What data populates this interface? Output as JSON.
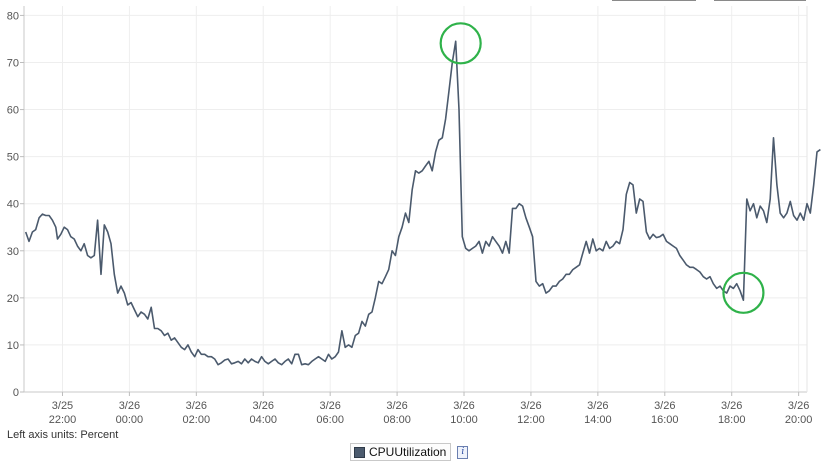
{
  "chart_data": {
    "type": "line",
    "title": "",
    "xlabel": "",
    "ylabel": "",
    "units_note": "Left axis units: Percent",
    "ylim": [
      0,
      82
    ],
    "yticks": [
      0,
      10,
      20,
      30,
      40,
      50,
      60,
      70,
      80
    ],
    "grid": true,
    "legend_position": "bottom-center",
    "x_range_hours": [
      20.85,
      44.25
    ],
    "xtick_hours": [
      22,
      24,
      26,
      28,
      30,
      32,
      34,
      36,
      38,
      40,
      42,
      44
    ],
    "xtick_labels": [
      [
        "3/25",
        "22:00"
      ],
      [
        "3/26",
        "00:00"
      ],
      [
        "3/26",
        "02:00"
      ],
      [
        "3/26",
        "04:00"
      ],
      [
        "3/26",
        "06:00"
      ],
      [
        "3/26",
        "08:00"
      ],
      [
        "3/26",
        "10:00"
      ],
      [
        "3/26",
        "12:00"
      ],
      [
        "3/26",
        "14:00"
      ],
      [
        "3/26",
        "16:00"
      ],
      [
        "3/26",
        "18:00"
      ],
      [
        "3/26",
        "20:00"
      ]
    ],
    "annotations": [
      {
        "type": "circle",
        "color": "#2fb24a",
        "x_hour": 33.9,
        "y": 74.5
      },
      {
        "type": "circle",
        "color": "#2fb24a",
        "x_hour": 42.35,
        "y": 21.5
      }
    ],
    "series": [
      {
        "name": "CPUUtilization",
        "color": "#4b5a6d",
        "points": [
          [
            20.9,
            34
          ],
          [
            21.0,
            32
          ],
          [
            21.1,
            34
          ],
          [
            21.2,
            34.5
          ],
          [
            21.3,
            37
          ],
          [
            21.4,
            37.8
          ],
          [
            21.5,
            37.5
          ],
          [
            21.6,
            37.5
          ],
          [
            21.7,
            36.5
          ],
          [
            21.8,
            35
          ],
          [
            21.85,
            32.5
          ],
          [
            21.95,
            33.5
          ],
          [
            22.05,
            35
          ],
          [
            22.15,
            34.5
          ],
          [
            22.25,
            33
          ],
          [
            22.35,
            32.5
          ],
          [
            22.45,
            31
          ],
          [
            22.55,
            30
          ],
          [
            22.65,
            31.5
          ],
          [
            22.75,
            29
          ],
          [
            22.85,
            28.5
          ],
          [
            22.95,
            29
          ],
          [
            23.05,
            36.5
          ],
          [
            23.15,
            25
          ],
          [
            23.25,
            35.5
          ],
          [
            23.35,
            34
          ],
          [
            23.45,
            31.5
          ],
          [
            23.55,
            25
          ],
          [
            23.65,
            21
          ],
          [
            23.75,
            22.5
          ],
          [
            23.85,
            21
          ],
          [
            23.95,
            18.5
          ],
          [
            24.05,
            19
          ],
          [
            24.15,
            17.5
          ],
          [
            24.25,
            16
          ],
          [
            24.35,
            17
          ],
          [
            24.45,
            16.5
          ],
          [
            24.55,
            15.5
          ],
          [
            24.65,
            18
          ],
          [
            24.75,
            13.5
          ],
          [
            24.85,
            13.5
          ],
          [
            24.95,
            13
          ],
          [
            25.05,
            12
          ],
          [
            25.15,
            12.5
          ],
          [
            25.25,
            11
          ],
          [
            25.35,
            11.5
          ],
          [
            25.45,
            10.5
          ],
          [
            25.55,
            9.5
          ],
          [
            25.65,
            9
          ],
          [
            25.75,
            10
          ],
          [
            25.85,
            8.5
          ],
          [
            25.95,
            7.5
          ],
          [
            26.05,
            9
          ],
          [
            26.15,
            8
          ],
          [
            26.25,
            8
          ],
          [
            26.35,
            7.5
          ],
          [
            26.45,
            7.5
          ],
          [
            26.55,
            7
          ],
          [
            26.65,
            5.8
          ],
          [
            26.75,
            6.2
          ],
          [
            26.85,
            6.8
          ],
          [
            26.95,
            7
          ],
          [
            27.05,
            6
          ],
          [
            27.15,
            6.2
          ],
          [
            27.25,
            6.5
          ],
          [
            27.35,
            6
          ],
          [
            27.45,
            7
          ],
          [
            27.55,
            6.2
          ],
          [
            27.65,
            7
          ],
          [
            27.75,
            6.5
          ],
          [
            27.85,
            6.2
          ],
          [
            27.95,
            7.5
          ],
          [
            28.05,
            6.5
          ],
          [
            28.15,
            6
          ],
          [
            28.25,
            6.5
          ],
          [
            28.35,
            7
          ],
          [
            28.45,
            6.2
          ],
          [
            28.55,
            5.8
          ],
          [
            28.65,
            6.5
          ],
          [
            28.75,
            7
          ],
          [
            28.85,
            6
          ],
          [
            28.95,
            8
          ],
          [
            29.05,
            8
          ],
          [
            29.15,
            5.8
          ],
          [
            29.25,
            6
          ],
          [
            29.35,
            5.8
          ],
          [
            29.45,
            6.5
          ],
          [
            29.55,
            7
          ],
          [
            29.65,
            7.5
          ],
          [
            29.75,
            7
          ],
          [
            29.85,
            6.5
          ],
          [
            29.95,
            8
          ],
          [
            30.05,
            7
          ],
          [
            30.15,
            7.5
          ],
          [
            30.25,
            8.5
          ],
          [
            30.35,
            13
          ],
          [
            30.45,
            9.5
          ],
          [
            30.55,
            10
          ],
          [
            30.65,
            9.5
          ],
          [
            30.75,
            12
          ],
          [
            30.85,
            12.5
          ],
          [
            30.95,
            15
          ],
          [
            31.05,
            14
          ],
          [
            31.15,
            16.5
          ],
          [
            31.25,
            17
          ],
          [
            31.35,
            20
          ],
          [
            31.45,
            23.5
          ],
          [
            31.55,
            23
          ],
          [
            31.65,
            24.5
          ],
          [
            31.75,
            26
          ],
          [
            31.85,
            30
          ],
          [
            31.95,
            29
          ],
          [
            32.05,
            33
          ],
          [
            32.15,
            35
          ],
          [
            32.25,
            38
          ],
          [
            32.35,
            36
          ],
          [
            32.45,
            43
          ],
          [
            32.55,
            47
          ],
          [
            32.65,
            46.5
          ],
          [
            32.75,
            47
          ],
          [
            32.85,
            48
          ],
          [
            32.95,
            49
          ],
          [
            33.05,
            47
          ],
          [
            33.15,
            51
          ],
          [
            33.25,
            53.5
          ],
          [
            33.35,
            54
          ],
          [
            33.45,
            58
          ],
          [
            33.55,
            64
          ],
          [
            33.65,
            70
          ],
          [
            33.75,
            74.5
          ],
          [
            33.85,
            60
          ],
          [
            33.95,
            33
          ],
          [
            34.05,
            30.5
          ],
          [
            34.15,
            30
          ],
          [
            34.25,
            30.5
          ],
          [
            34.35,
            31
          ],
          [
            34.45,
            32
          ],
          [
            34.55,
            29.5
          ],
          [
            34.65,
            32
          ],
          [
            34.75,
            31
          ],
          [
            34.85,
            33
          ],
          [
            34.95,
            32
          ],
          [
            35.05,
            31
          ],
          [
            35.15,
            29.5
          ],
          [
            35.25,
            32
          ],
          [
            35.35,
            29.5
          ],
          [
            35.45,
            39
          ],
          [
            35.55,
            39
          ],
          [
            35.65,
            40
          ],
          [
            35.75,
            39.5
          ],
          [
            35.85,
            37
          ],
          [
            35.95,
            35
          ],
          [
            36.05,
            33
          ],
          [
            36.15,
            23.5
          ],
          [
            36.25,
            22.5
          ],
          [
            36.35,
            23
          ],
          [
            36.45,
            21
          ],
          [
            36.55,
            21.5
          ],
          [
            36.65,
            22.5
          ],
          [
            36.75,
            22.5
          ],
          [
            36.85,
            23.5
          ],
          [
            36.95,
            24
          ],
          [
            37.05,
            25
          ],
          [
            37.15,
            25
          ],
          [
            37.25,
            26
          ],
          [
            37.35,
            26.5
          ],
          [
            37.45,
            27
          ],
          [
            37.55,
            29.5
          ],
          [
            37.65,
            32
          ],
          [
            37.75,
            29.5
          ],
          [
            37.85,
            32.5
          ],
          [
            37.95,
            30
          ],
          [
            38.05,
            30.5
          ],
          [
            38.15,
            30
          ],
          [
            38.25,
            32
          ],
          [
            38.35,
            30.5
          ],
          [
            38.45,
            31
          ],
          [
            38.55,
            32
          ],
          [
            38.65,
            31.5
          ],
          [
            38.75,
            34.5
          ],
          [
            38.85,
            42
          ],
          [
            38.95,
            44.5
          ],
          [
            39.05,
            44
          ],
          [
            39.15,
            38
          ],
          [
            39.25,
            41
          ],
          [
            39.35,
            40.5
          ],
          [
            39.45,
            34
          ],
          [
            39.55,
            32.5
          ],
          [
            39.65,
            33.5
          ],
          [
            39.75,
            32.8
          ],
          [
            39.85,
            33
          ],
          [
            39.95,
            33.5
          ],
          [
            40.05,
            32
          ],
          [
            40.15,
            31.5
          ],
          [
            40.25,
            31
          ],
          [
            40.35,
            30.5
          ],
          [
            40.45,
            29
          ],
          [
            40.55,
            28
          ],
          [
            40.65,
            27
          ],
          [
            40.75,
            26.5
          ],
          [
            40.85,
            26.5
          ],
          [
            40.95,
            26
          ],
          [
            41.05,
            25.5
          ],
          [
            41.15,
            24.5
          ],
          [
            41.25,
            24
          ],
          [
            41.35,
            24.5
          ],
          [
            41.45,
            23
          ],
          [
            41.55,
            22
          ],
          [
            41.65,
            22.5
          ],
          [
            41.75,
            21.5
          ],
          [
            41.85,
            21
          ],
          [
            41.95,
            22.5
          ],
          [
            42.05,
            22
          ],
          [
            42.15,
            23
          ],
          [
            42.25,
            21.5
          ],
          [
            42.35,
            19.5
          ],
          [
            42.45,
            41
          ],
          [
            42.55,
            38.5
          ],
          [
            42.65,
            40
          ],
          [
            42.75,
            37
          ],
          [
            42.85,
            39.5
          ],
          [
            42.95,
            38.5
          ],
          [
            43.05,
            36
          ],
          [
            43.15,
            41
          ],
          [
            43.25,
            54
          ],
          [
            43.35,
            44
          ],
          [
            43.45,
            38
          ],
          [
            43.55,
            37
          ],
          [
            43.65,
            38
          ],
          [
            43.75,
            40.5
          ],
          [
            43.85,
            37.5
          ],
          [
            43.95,
            36.5
          ],
          [
            44.05,
            38
          ],
          [
            44.15,
            36.5
          ],
          [
            44.25,
            40
          ],
          [
            44.35,
            38
          ],
          [
            44.45,
            44
          ],
          [
            44.55,
            51
          ],
          [
            44.65,
            51.5
          ]
        ]
      }
    ]
  }
}
